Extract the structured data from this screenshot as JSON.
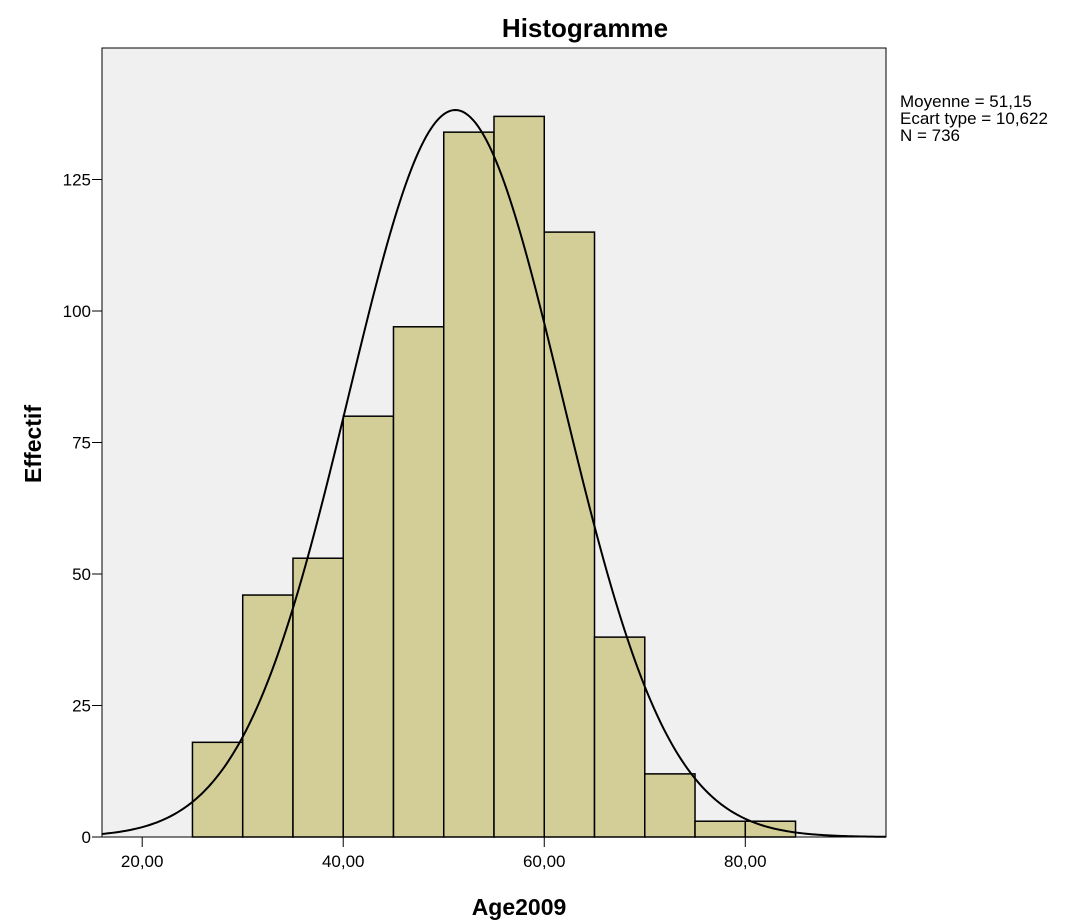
{
  "chart_data": {
    "type": "bar",
    "title": "Histogramme",
    "xlabel": "Age2009",
    "ylabel": "Effectif",
    "bins": [
      {
        "from": 25,
        "to": 30,
        "count": 18
      },
      {
        "from": 30,
        "to": 35,
        "count": 46
      },
      {
        "from": 35,
        "to": 40,
        "count": 53
      },
      {
        "from": 40,
        "to": 45,
        "count": 80
      },
      {
        "from": 45,
        "to": 50,
        "count": 97
      },
      {
        "from": 50,
        "to": 55,
        "count": 134
      },
      {
        "from": 55,
        "to": 60,
        "count": 137
      },
      {
        "from": 60,
        "to": 65,
        "count": 115
      },
      {
        "from": 65,
        "to": 70,
        "count": 38
      },
      {
        "from": 70,
        "to": 75,
        "count": 12
      },
      {
        "from": 75,
        "to": 80,
        "count": 3
      },
      {
        "from": 80,
        "to": 85,
        "count": 3
      }
    ],
    "xlim": [
      16,
      94
    ],
    "ylim": [
      0,
      150
    ],
    "xticks": [
      20,
      40,
      60,
      80
    ],
    "xtick_labels": [
      "20,00",
      "40,00",
      "60,00",
      "80,00"
    ],
    "yticks": [
      0,
      25,
      50,
      75,
      100,
      125
    ],
    "ytick_labels": [
      "0",
      "25",
      "50",
      "75",
      "100",
      "125"
    ],
    "normal_curve": {
      "mean": 51.15,
      "std": 10.622,
      "n": 736,
      "bin_width": 5
    },
    "stats": [
      "Moyenne = 51,15",
      "Ecart type = 10,622",
      "N = 736"
    ],
    "colors": {
      "bar_fill": "#d3ce98",
      "plot_background": "#f0f0f0",
      "outline": "#000000"
    }
  }
}
